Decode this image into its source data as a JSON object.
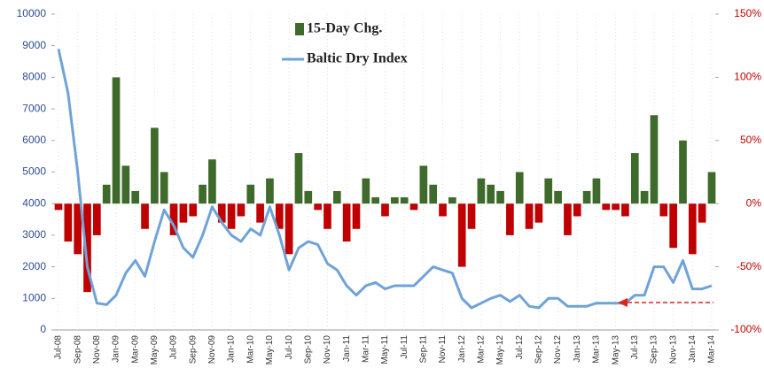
{
  "chart_data": {
    "type": "combo",
    "categories": [
      "Jul-08",
      null,
      "Sep-08",
      null,
      "Nov-08",
      null,
      "Jan-09",
      null,
      "Mar-09",
      null,
      "May-09",
      null,
      "Jul-09",
      null,
      "Sep-09",
      null,
      "Nov-09",
      null,
      "Jan-10",
      null,
      "Mar-10",
      null,
      "May-10",
      null,
      "Jul-10",
      null,
      "Sep-10",
      null,
      "Nov-10",
      null,
      "Jan-11",
      null,
      "Mar-11",
      null,
      "May-11",
      null,
      "Jul-11",
      null,
      "Sep-11",
      null,
      "Nov-11",
      null,
      "Jan-12",
      null,
      "Mar-12",
      null,
      "May-12",
      null,
      "Jul-12",
      null,
      "Sep-12",
      null,
      "Nov-12",
      null,
      "Jan-13",
      null,
      "Mar-13",
      null,
      "May-13",
      null,
      "Jul-13",
      null,
      "Sep-13",
      null,
      "Nov-13",
      null,
      "Jan-14",
      null,
      "Mar-14"
    ],
    "series": [
      {
        "name": "15-Day Chg.",
        "type": "bar",
        "axis": "y2",
        "color": "#3e6b2b",
        "negative_color": "#c00000",
        "values": [
          -5,
          -30,
          -40,
          -70,
          -25,
          15,
          100,
          30,
          10,
          -20,
          60,
          25,
          -25,
          -15,
          -10,
          15,
          35,
          -15,
          -20,
          -10,
          15,
          -15,
          20,
          -20,
          -40,
          40,
          10,
          -5,
          -20,
          10,
          -30,
          -20,
          20,
          5,
          -10,
          5,
          5,
          -5,
          30,
          15,
          -10,
          5,
          -50,
          -20,
          20,
          15,
          10,
          -25,
          25,
          -20,
          -15,
          20,
          10,
          -25,
          -10,
          10,
          20,
          -5,
          -5,
          -10,
          40,
          10,
          70,
          -10,
          -35,
          50,
          -40,
          -15,
          25
        ]
      },
      {
        "name": "Baltic Dry Index",
        "type": "line",
        "color": "#6fa3d8",
        "values": [
          8900,
          7500,
          5000,
          2000,
          850,
          800,
          1100,
          1800,
          2200,
          1700,
          2800,
          3800,
          3300,
          2600,
          2300,
          3000,
          3900,
          3400,
          3000,
          2800,
          3200,
          3000,
          3900,
          3000,
          1900,
          2600,
          2800,
          2700,
          2100,
          1900,
          1400,
          1100,
          1400,
          1500,
          1300,
          1400,
          1400,
          1400,
          1700,
          2000,
          1900,
          1800,
          1000,
          700,
          850,
          1000,
          1100,
          900,
          1100,
          750,
          700,
          1000,
          1000,
          750,
          750,
          750,
          850,
          850,
          850,
          850,
          1100,
          1100,
          2000,
          2000,
          1500,
          2200,
          1300,
          1300,
          1400
        ]
      }
    ],
    "ylim": [
      0,
      10000
    ],
    "yticks": [
      0,
      1000,
      2000,
      3000,
      4000,
      5000,
      6000,
      7000,
      8000,
      9000,
      10000
    ],
    "y2lim": [
      -100,
      150
    ],
    "y2ticks": [
      {
        "value": -100,
        "label": "-100%"
      },
      {
        "value": -50,
        "label": "-50%"
      },
      {
        "value": 0,
        "label": "0%"
      },
      {
        "value": 50,
        "label": "50%"
      },
      {
        "value": 100,
        "label": "100%"
      },
      {
        "value": 150,
        "label": "150%"
      }
    ]
  }
}
